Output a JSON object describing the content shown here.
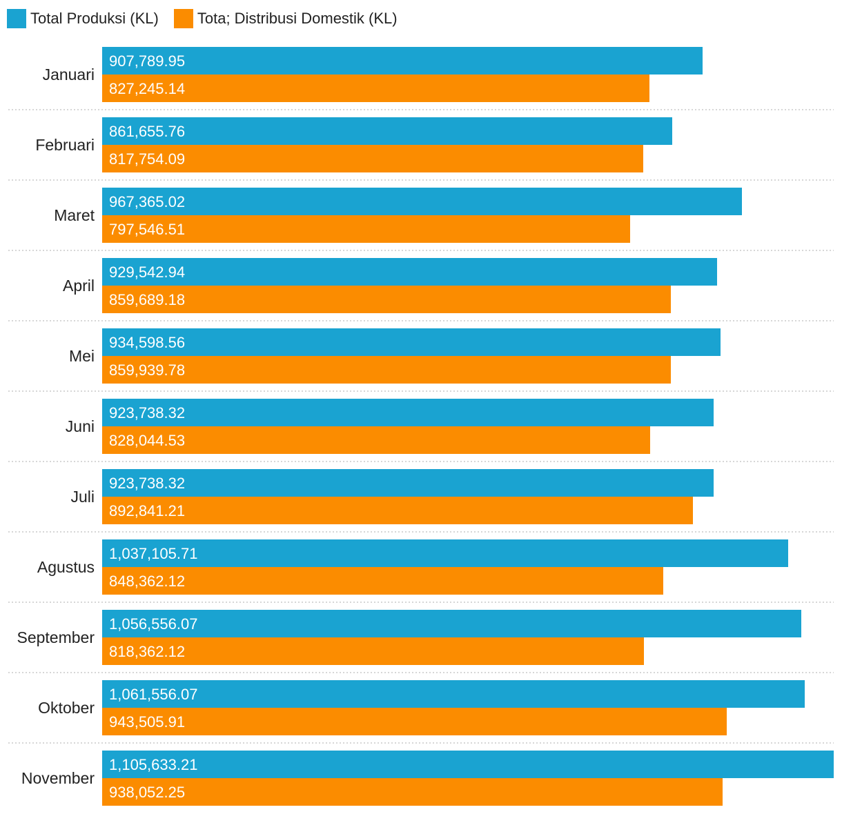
{
  "chart_data": {
    "type": "bar",
    "orientation": "horizontal",
    "categories": [
      "Januari",
      "Februari",
      "Maret",
      "April",
      "Mei",
      "Juni",
      "Juli",
      "Agustus",
      "September",
      "Oktober",
      "November"
    ],
    "series": [
      {
        "name": "Total Produksi (KL)",
        "color": "#1aa3d1",
        "values": [
          907789.95,
          861655.76,
          967365.02,
          929542.94,
          934598.56,
          923738.32,
          923738.32,
          1037105.71,
          1056556.07,
          1061556.07,
          1105633.21
        ],
        "labels": [
          "907,789.95",
          "861,655.76",
          "967,365.02",
          "929,542.94",
          "934,598.56",
          "923,738.32",
          "923,738.32",
          "1,037,105.71",
          "1,056,556.07",
          "1,061,556.07",
          "1,105,633.21"
        ]
      },
      {
        "name": "Tota; Distribusi Domestik (KL)",
        "color": "#fb8c00",
        "values": [
          827245.14,
          817754.09,
          797546.51,
          859689.18,
          859939.78,
          828044.53,
          892841.21,
          848362.12,
          818362.12,
          943505.91,
          938052.25
        ],
        "labels": [
          "827,245.14",
          "817,754.09",
          "797,546.51",
          "859,689.18",
          "859,939.78",
          "828,044.53",
          "892,841.21",
          "848,362.12",
          "818,362.12",
          "943,505.91",
          "938,052.25"
        ]
      }
    ],
    "legend_position": "top-left",
    "grid": false,
    "xlim": [
      0,
      1105633.21
    ]
  }
}
